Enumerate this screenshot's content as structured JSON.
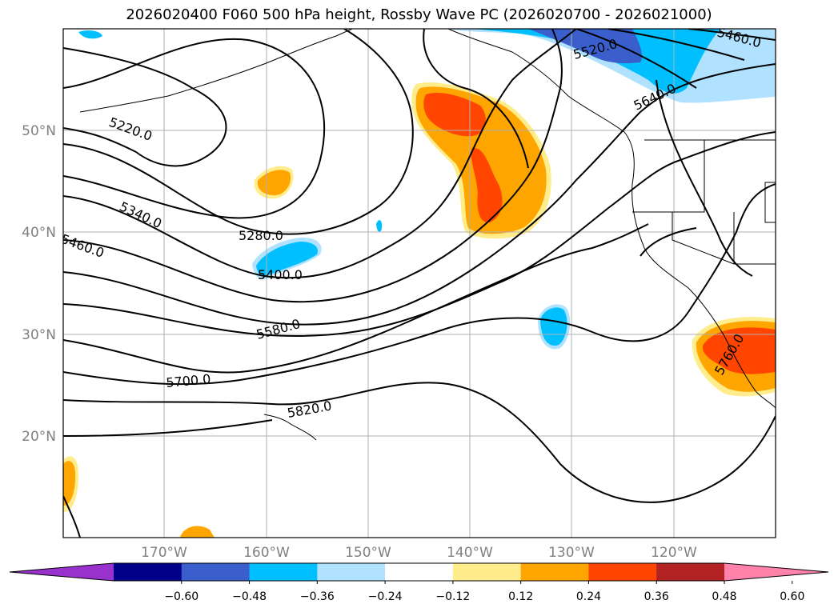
{
  "title": "2026020400 F060 500 hPa height, Rossby Wave PC (2026020700 - 2026021000)",
  "map": {
    "lat_labels": [
      "50°N",
      "40°N",
      "30°N",
      "20°N"
    ],
    "lon_labels": [
      "170°W",
      "160°W",
      "150°W",
      "140°W",
      "130°W",
      "120°W"
    ],
    "contour_labels": [
      "5220.0",
      "5340.0",
      "5460.0",
      "5280.0",
      "5400.0",
      "5580.0",
      "5700.0",
      "5820.0",
      "5520.0",
      "5640.0",
      "5460.0",
      "5760.0"
    ],
    "colors": {
      "contour": "#000000",
      "grid": "#b0b0b0",
      "coast": "#000000"
    }
  },
  "colorbar": {
    "ticks": [
      "−0.60",
      "−0.48",
      "−0.36",
      "−0.24",
      "−0.12",
      "0.12",
      "0.24",
      "0.36",
      "0.48",
      "0.60"
    ],
    "colors": [
      "#9932cc",
      "#00008b",
      "#3a5fcd",
      "#00bfff",
      "#b0e2ff",
      "#ffffff",
      "#ffec8b",
      "#ffa500",
      "#ff4500",
      "#b22222",
      "#ff82ab"
    ]
  }
}
